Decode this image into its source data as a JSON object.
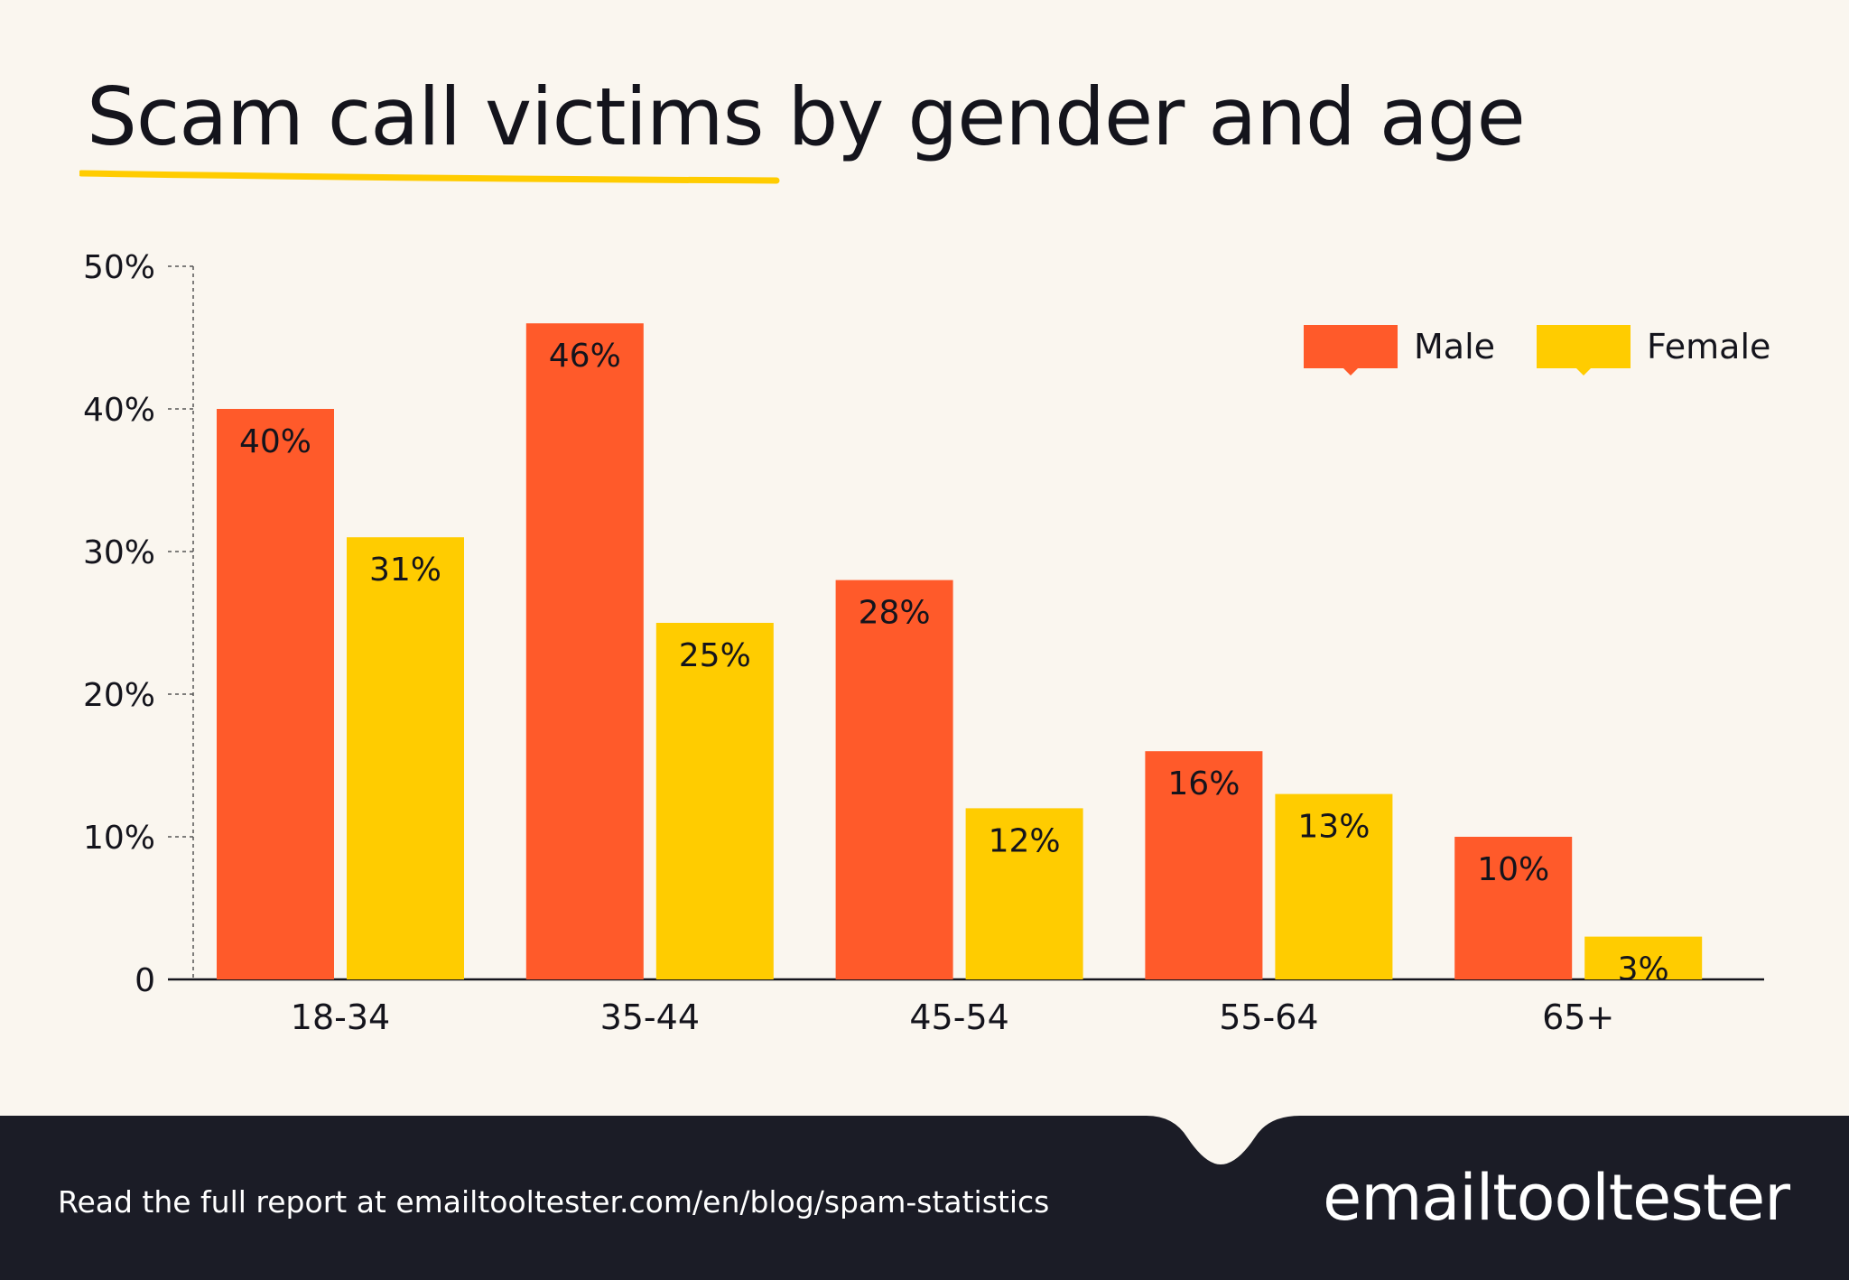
{
  "header": {
    "title": "Scam call victims by gender and age"
  },
  "footer": {
    "text": "Read the full report at emailtooltester.com/en/blog/spam-statistics",
    "brand": "emailtooltester"
  },
  "colors": {
    "male": "#FF5A2A",
    "female": "#FFCC00",
    "background": "#FAF6EF",
    "footer": "#1B1C26",
    "text": "#14141C"
  },
  "chart_data": {
    "type": "bar",
    "title": "Scam call victims by gender and age",
    "categories": [
      "18-34",
      "35-44",
      "45-54",
      "55-64",
      "65+"
    ],
    "series": [
      {
        "name": "Male",
        "values": [
          40,
          46,
          28,
          16,
          10
        ],
        "labels": [
          "40%",
          "46%",
          "28%",
          "16%",
          "10%"
        ]
      },
      {
        "name": "Female",
        "values": [
          31,
          25,
          12,
          13,
          3
        ],
        "labels": [
          "31%",
          "25%",
          "12%",
          "13%",
          "3%"
        ]
      }
    ],
    "y_ticks": [
      0,
      10,
      20,
      30,
      40,
      50
    ],
    "y_tick_labels": [
      "0",
      "10%",
      "20%",
      "30%",
      "40%",
      "50%"
    ],
    "ylim": [
      0,
      50
    ],
    "xlabel": "",
    "ylabel": "",
    "legend_position": "top-right",
    "grid": false
  }
}
